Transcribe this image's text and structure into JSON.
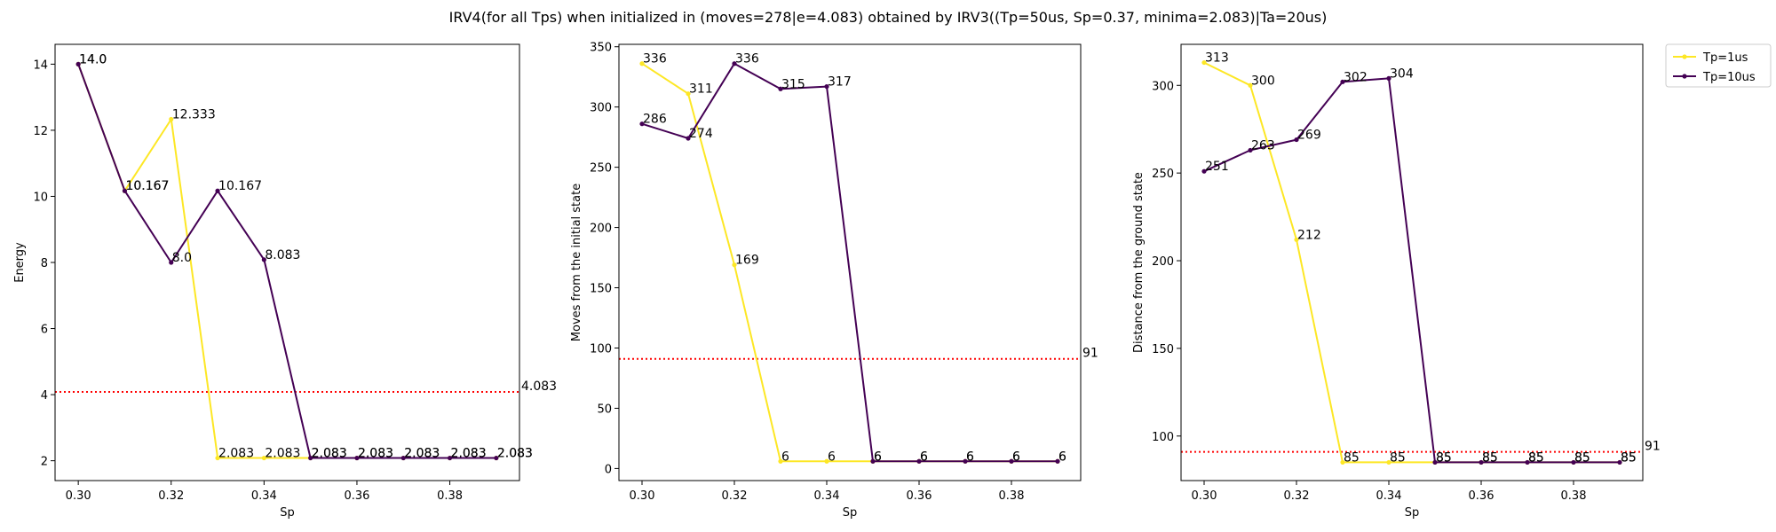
{
  "figure": {
    "suptitle": "IRV4(for all Tps) when initialized in (moves=278|e=4.083) obtained by IRV3((Tp=50us, Sp=0.37, minima=2.083)|Ta=20us)"
  },
  "colors": {
    "yellow": "#fde725",
    "purple": "#440154",
    "reference": "#ff0000"
  },
  "legend": {
    "placement": "outside-right-top",
    "entries": [
      "Tp=1us",
      "Tp=10us"
    ]
  },
  "chart_data": [
    {
      "type": "line",
      "title": "",
      "xlabel": "Sp",
      "ylabel": "Energy",
      "xlim": [
        0.295,
        0.395
      ],
      "ylim": [
        1.4,
        14.6
      ],
      "xticks": [
        0.3,
        0.32,
        0.34,
        0.36,
        0.38
      ],
      "xtick_labels": [
        "0.30",
        "0.32",
        "0.34",
        "0.36",
        "0.38"
      ],
      "yticks": [
        2,
        4,
        6,
        8,
        10,
        12,
        14
      ],
      "ytick_labels": [
        "2",
        "4",
        "6",
        "8",
        "10",
        "12",
        "14"
      ],
      "x": [
        0.3,
        0.31,
        0.32,
        0.33,
        0.34,
        0.35,
        0.36,
        0.37,
        0.38,
        0.39
      ],
      "series": [
        {
          "name": "Tp=1us",
          "color": "#fde725",
          "values": [
            14.0,
            10.167,
            12.333,
            2.083,
            2.083,
            2.083,
            2.083,
            2.083,
            2.083,
            2.083
          ],
          "labels": [
            "14.0",
            "10.167",
            "12.333",
            "2.083",
            "2.083",
            "2.083",
            "2.083",
            "2.083",
            "2.083",
            "2.083"
          ]
        },
        {
          "name": "Tp=10us",
          "color": "#440154",
          "values": [
            14.0,
            10.167,
            8.0,
            10.167,
            8.083,
            2.083,
            2.083,
            2.083,
            2.083,
            2.083
          ],
          "labels": [
            "14.0",
            "10.167",
            "8.0",
            "10.167",
            "8.083",
            "2.083",
            "2.083",
            "2.083",
            "2.083",
            "2.083"
          ]
        }
      ],
      "reference_line": {
        "value": 4.083,
        "label": "4.083"
      },
      "grid": false
    },
    {
      "type": "line",
      "title": "",
      "xlabel": "Sp",
      "ylabel": "Moves from the initial state",
      "xlim": [
        0.295,
        0.395
      ],
      "ylim": [
        -10,
        352
      ],
      "xticks": [
        0.3,
        0.32,
        0.34,
        0.36,
        0.38
      ],
      "xtick_labels": [
        "0.30",
        "0.32",
        "0.34",
        "0.36",
        "0.38"
      ],
      "yticks": [
        0,
        50,
        100,
        150,
        200,
        250,
        300,
        350
      ],
      "ytick_labels": [
        "0",
        "50",
        "100",
        "150",
        "200",
        "250",
        "300",
        "350"
      ],
      "x": [
        0.3,
        0.31,
        0.32,
        0.33,
        0.34,
        0.35,
        0.36,
        0.37,
        0.38,
        0.39
      ],
      "series": [
        {
          "name": "Tp=1us",
          "color": "#fde725",
          "values": [
            336,
            311,
            169,
            6,
            6,
            6,
            6,
            6,
            6,
            6
          ],
          "labels": [
            "336",
            "311",
            "169",
            "6",
            "6",
            "6",
            "6",
            "6",
            "6",
            "6"
          ]
        },
        {
          "name": "Tp=10us",
          "color": "#440154",
          "values": [
            286,
            274,
            336,
            315,
            317,
            6,
            6,
            6,
            6,
            6
          ],
          "labels": [
            "286",
            "274",
            "336",
            "315",
            "317",
            "6",
            "6",
            "6",
            "6",
            "6"
          ]
        }
      ],
      "reference_line": {
        "value": 91,
        "label": "91"
      },
      "grid": false
    },
    {
      "type": "line",
      "title": "",
      "xlabel": "Sp",
      "ylabel": "Distance from the ground state",
      "xlim": [
        0.295,
        0.395
      ],
      "ylim": [
        74.6,
        323.4
      ],
      "xticks": [
        0.3,
        0.32,
        0.34,
        0.36,
        0.38
      ],
      "xtick_labels": [
        "0.30",
        "0.32",
        "0.34",
        "0.36",
        "0.38"
      ],
      "yticks": [
        100,
        150,
        200,
        250,
        300
      ],
      "ytick_labels": [
        "100",
        "150",
        "200",
        "250",
        "300"
      ],
      "x": [
        0.3,
        0.31,
        0.32,
        0.33,
        0.34,
        0.35,
        0.36,
        0.37,
        0.38,
        0.39
      ],
      "series": [
        {
          "name": "Tp=1us",
          "color": "#fde725",
          "values": [
            313,
            300,
            212,
            85,
            85,
            85,
            85,
            85,
            85,
            85
          ],
          "labels": [
            "313",
            "300",
            "212",
            "85",
            "85",
            "85",
            "85",
            "85",
            "85",
            "85"
          ]
        },
        {
          "name": "Tp=10us",
          "color": "#440154",
          "values": [
            251,
            263,
            269,
            302,
            304,
            85,
            85,
            85,
            85,
            85
          ],
          "labels": [
            "251",
            "263",
            "269",
            "302",
            "304",
            "85",
            "85",
            "85",
            "85",
            "85"
          ]
        }
      ],
      "reference_line": {
        "value": 91,
        "label": "91"
      },
      "grid": false
    }
  ]
}
